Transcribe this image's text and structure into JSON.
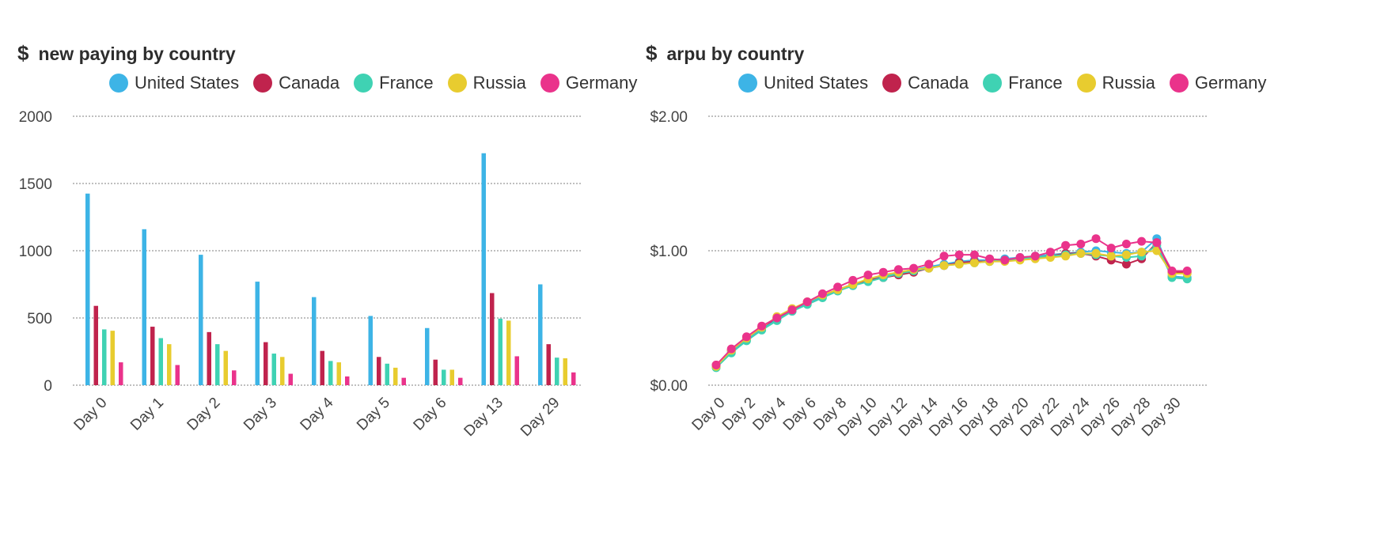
{
  "chart_data": [
    {
      "type": "bar",
      "title_icon": "$",
      "title": "new paying by country",
      "categories": [
        "Day 0",
        "Day 1",
        "Day 2",
        "Day 3",
        "Day 4",
        "Day 5",
        "Day 6",
        "Day 13",
        "Day 29"
      ],
      "yticks": [
        "0",
        "500",
        "1000",
        "1500",
        "2000"
      ],
      "ylim": [
        0,
        2000
      ],
      "grid": true,
      "legend_position": "top",
      "series": [
        {
          "name": "United States",
          "color": "#3db4e6",
          "values": [
            1425,
            1160,
            970,
            770,
            655,
            515,
            425,
            1725,
            750
          ]
        },
        {
          "name": "Canada",
          "color": "#c0234d",
          "values": [
            590,
            435,
            395,
            320,
            255,
            210,
            190,
            685,
            305
          ]
        },
        {
          "name": "France",
          "color": "#3fd2b3",
          "values": [
            415,
            350,
            305,
            235,
            180,
            160,
            115,
            495,
            205
          ]
        },
        {
          "name": "Russia",
          "color": "#e8cc2f",
          "values": [
            405,
            305,
            255,
            210,
            170,
            130,
            115,
            480,
            200
          ]
        },
        {
          "name": "Germany",
          "color": "#ea338b",
          "values": [
            170,
            150,
            110,
            85,
            65,
            55,
            55,
            215,
            95
          ]
        }
      ]
    },
    {
      "type": "line",
      "title_icon": "$",
      "title": "arpu by country",
      "x": [
        0,
        1,
        2,
        3,
        4,
        5,
        6,
        7,
        8,
        9,
        10,
        11,
        12,
        13,
        14,
        15,
        16,
        17,
        18,
        19,
        20,
        21,
        22,
        23,
        24,
        25,
        26,
        27,
        28,
        29,
        30,
        31
      ],
      "xticks": [
        "Day 0",
        "Day 2",
        "Day 4",
        "Day 6",
        "Day 8",
        "Day 10",
        "Day 12",
        "Day 14",
        "Day 16",
        "Day 18",
        "Day 20",
        "Day 22",
        "Day 24",
        "Day 26",
        "Day 28",
        "Day 30"
      ],
      "yticks": [
        "$0.00",
        "$1.00",
        "$2.00"
      ],
      "ylim": [
        0,
        2
      ],
      "grid": true,
      "legend_position": "top",
      "series": [
        {
          "name": "United States",
          "color": "#3db4e6",
          "values": [
            0.14,
            0.25,
            0.34,
            0.42,
            0.49,
            0.55,
            0.61,
            0.66,
            0.71,
            0.75,
            0.78,
            0.81,
            0.84,
            0.86,
            0.88,
            0.9,
            0.92,
            0.93,
            0.93,
            0.94,
            0.95,
            0.96,
            0.97,
            0.98,
            0.99,
            1.0,
            0.99,
            0.98,
            0.99,
            1.09,
            0.81,
            0.8
          ]
        },
        {
          "name": "Canada",
          "color": "#c0234d",
          "values": [
            0.15,
            0.26,
            0.35,
            0.43,
            0.5,
            0.56,
            0.62,
            0.67,
            0.71,
            0.75,
            0.78,
            0.8,
            0.82,
            0.84,
            0.87,
            0.89,
            0.91,
            0.92,
            0.92,
            0.93,
            0.94,
            0.95,
            0.96,
            0.98,
            0.98,
            0.96,
            0.93,
            0.9,
            0.94,
            1.06,
            0.84,
            0.84
          ]
        },
        {
          "name": "France",
          "color": "#3fd2b3",
          "values": [
            0.13,
            0.24,
            0.33,
            0.41,
            0.48,
            0.55,
            0.6,
            0.65,
            0.7,
            0.74,
            0.77,
            0.8,
            0.83,
            0.85,
            0.87,
            0.89,
            0.9,
            0.91,
            0.92,
            0.93,
            0.94,
            0.95,
            0.96,
            0.97,
            0.98,
            0.97,
            0.96,
            0.95,
            0.96,
            1.04,
            0.8,
            0.79
          ]
        },
        {
          "name": "Russia",
          "color": "#e8cc2f",
          "values": [
            0.14,
            0.26,
            0.35,
            0.43,
            0.51,
            0.57,
            0.62,
            0.67,
            0.71,
            0.75,
            0.79,
            0.82,
            0.84,
            0.86,
            0.87,
            0.89,
            0.9,
            0.91,
            0.92,
            0.92,
            0.93,
            0.94,
            0.95,
            0.96,
            0.98,
            0.98,
            0.96,
            0.97,
            0.99,
            1.0,
            0.83,
            0.83
          ]
        },
        {
          "name": "Germany",
          "color": "#ea338b",
          "values": [
            0.15,
            0.27,
            0.36,
            0.44,
            0.5,
            0.56,
            0.62,
            0.68,
            0.73,
            0.78,
            0.82,
            0.84,
            0.86,
            0.87,
            0.9,
            0.96,
            0.97,
            0.97,
            0.94,
            0.93,
            0.95,
            0.96,
            0.99,
            1.04,
            1.05,
            1.09,
            1.02,
            1.05,
            1.07,
            1.06,
            0.85,
            0.85
          ]
        }
      ]
    }
  ]
}
